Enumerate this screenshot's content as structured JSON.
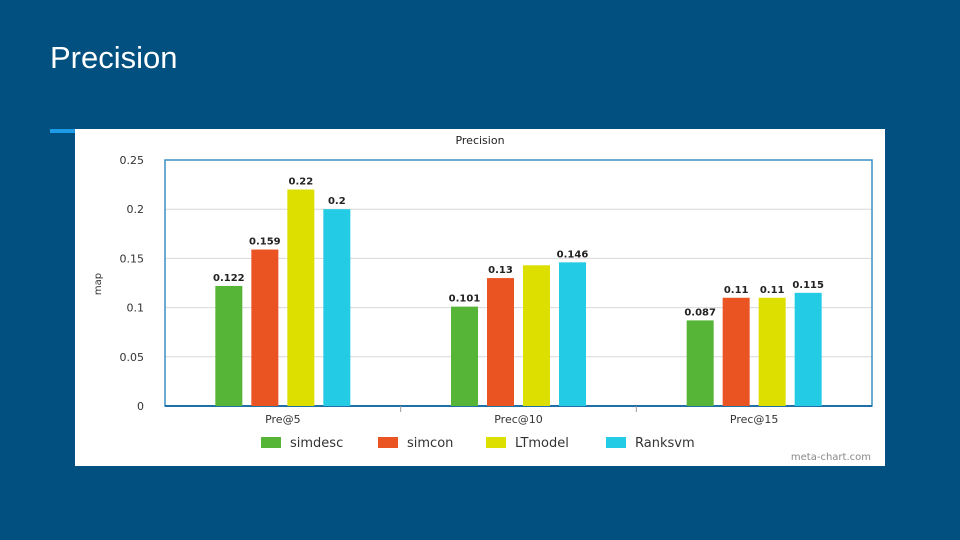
{
  "slide": {
    "title": "Precision"
  },
  "chart_data": {
    "type": "bar",
    "title": "Precision",
    "xlabel": "",
    "ylabel": "map",
    "ylim": [
      0,
      0.25
    ],
    "yticks": [
      "0",
      "0.05",
      "0.1",
      "0.15",
      "0.2",
      "0.25"
    ],
    "ytick_values": [
      0,
      0.05,
      0.1,
      0.15,
      0.2,
      0.25
    ],
    "categories": [
      "Pre@5",
      "Prec@10",
      "Prec@15"
    ],
    "series": [
      {
        "name": "simdesc",
        "color": "#56b536",
        "values": [
          0.122,
          0.101,
          0.087
        ],
        "labels": [
          "0.122",
          "0.101",
          "0.087"
        ]
      },
      {
        "name": "simcon",
        "color": "#ea5322",
        "values": [
          0.159,
          0.13,
          0.11
        ],
        "labels": [
          "0.159",
          "0.13",
          "0.11"
        ]
      },
      {
        "name": "LTmodel",
        "color": "#dddf00",
        "values": [
          0.22,
          0.143,
          0.11
        ],
        "labels": [
          "0.22",
          "",
          "0.11"
        ]
      },
      {
        "name": "Ranksvm",
        "color": "#24cbe5",
        "values": [
          0.2,
          0.146,
          0.115
        ],
        "labels": [
          "0.2",
          "0.146",
          "0.115"
        ]
      }
    ],
    "grid": true,
    "legend_position": "bottom",
    "credit": "meta-chart.com"
  }
}
